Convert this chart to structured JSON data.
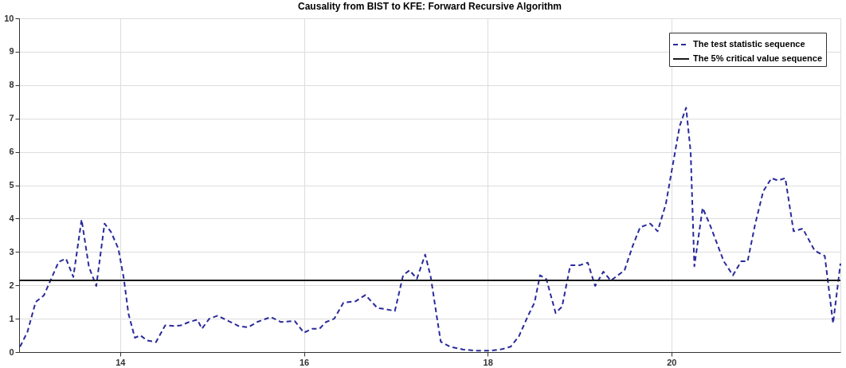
{
  "chart_data": {
    "type": "line",
    "title": "Causality from BIST to KFE: Forward Recursive Algorithm",
    "xlim": [
      12.9,
      21.84
    ],
    "xticks": [
      14,
      16,
      18,
      20
    ],
    "ylim": [
      0,
      10
    ],
    "yticks": [
      0,
      1,
      2,
      3,
      4,
      5,
      6,
      7,
      8,
      9,
      10
    ],
    "grid": true,
    "legend": "top right",
    "marker": "none",
    "series": [
      {
        "name": "The test statistic sequence",
        "color": "#2a2a9c",
        "line_style": "dashed",
        "x": [
          12.91,
          12.99,
          13.08,
          13.17,
          13.33,
          13.41,
          13.49,
          13.58,
          13.66,
          13.74,
          13.83,
          13.9,
          13.98,
          14.04,
          14.09,
          14.16,
          14.22,
          14.29,
          14.39,
          14.49,
          14.59,
          14.66,
          14.75,
          14.84,
          14.89,
          14.97,
          15.06,
          15.18,
          15.29,
          15.39,
          15.49,
          15.64,
          15.75,
          15.9,
          16.0,
          16.09,
          16.17,
          16.24,
          16.33,
          16.43,
          16.56,
          16.67,
          16.8,
          16.9,
          16.99,
          17.08,
          17.15,
          17.23,
          17.32,
          17.38,
          17.45,
          17.49,
          17.59,
          17.73,
          17.88,
          18.03,
          18.16,
          18.25,
          18.34,
          18.44,
          18.51,
          18.57,
          18.64,
          18.74,
          18.81,
          18.9,
          19.0,
          19.09,
          19.17,
          19.26,
          19.34,
          19.49,
          19.58,
          19.66,
          19.77,
          19.85,
          19.94,
          20.03,
          20.09,
          20.16,
          20.21,
          20.25,
          20.34,
          20.42,
          20.57,
          20.67,
          20.76,
          20.83,
          20.91,
          21.0,
          21.09,
          21.16,
          21.24,
          21.33,
          21.43,
          21.56,
          21.67,
          21.76,
          21.84
        ],
        "values": [
          0.16,
          0.6,
          1.5,
          1.7,
          2.7,
          2.8,
          2.25,
          3.97,
          2.55,
          1.98,
          3.85,
          3.6,
          3.1,
          2.2,
          1.15,
          0.43,
          0.5,
          0.35,
          0.3,
          0.8,
          0.78,
          0.8,
          0.9,
          0.97,
          0.7,
          1.0,
          1.09,
          0.93,
          0.78,
          0.74,
          0.9,
          1.05,
          0.9,
          0.93,
          0.58,
          0.7,
          0.7,
          0.9,
          1.0,
          1.48,
          1.52,
          1.71,
          1.32,
          1.28,
          1.23,
          2.3,
          2.45,
          2.2,
          2.92,
          2.26,
          1.0,
          0.31,
          0.16,
          0.08,
          0.04,
          0.04,
          0.09,
          0.16,
          0.47,
          1.09,
          1.48,
          2.3,
          2.18,
          1.17,
          1.36,
          2.6,
          2.6,
          2.68,
          1.98,
          2.41,
          2.14,
          2.45,
          3.19,
          3.74,
          3.85,
          3.62,
          4.44,
          5.84,
          6.77,
          7.32,
          5.99,
          2.57,
          4.32,
          3.81,
          2.72,
          2.3,
          2.72,
          2.72,
          3.81,
          4.82,
          5.21,
          5.14,
          5.21,
          3.62,
          3.7,
          3.04,
          2.88,
          0.86,
          2.65
        ]
      },
      {
        "name": "The 5% critical value sequence",
        "color": "#1a1a1a",
        "line_style": "solid",
        "x": [
          12.9,
          21.84
        ],
        "values": [
          2.15,
          2.15
        ]
      }
    ]
  }
}
